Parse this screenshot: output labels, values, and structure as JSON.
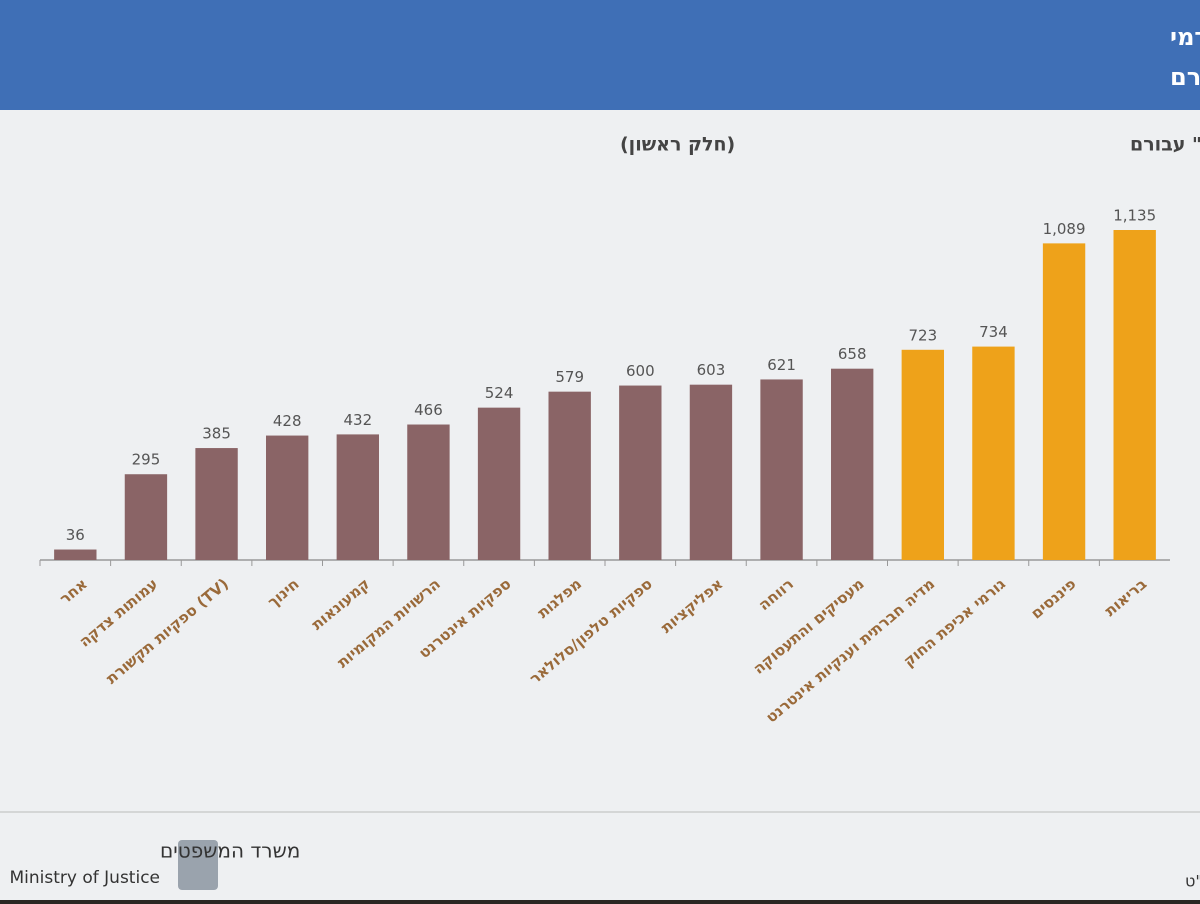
{
  "header": {
    "title_lines": [
      "רובם המכריע של המשיבים סימנו את תחומי הבריאות, הפיננסים, גורמי",
      "אכיפת חוק וענקיות האינטרנט כ\"רגישים\" עבורם"
    ]
  },
  "chart_data": {
    "type": "bar",
    "title": "(חלק ראשון)",
    "subtitle": "מספר האנשים שסימנו תחום זה כ\"רגיש\" עבורם",
    "categories": [
      "אחר",
      "עמותות צדקה",
      "ספקיות תקשורת (TV)",
      "חינוך",
      "קמעונאות",
      "הרשויות המקומיות",
      "ספקיות אינטרנט",
      "מפלגות",
      "ספקיות טלפון/סלולאר",
      "אפליקציות",
      "רווחה",
      "מעסיקים והתעסוקה",
      "מדיה חברתית וענקיות אינטרנט",
      "גורמי אכיפת החוק",
      "פיננסים",
      "בריאות"
    ],
    "values": [
      36,
      295,
      385,
      428,
      432,
      466,
      524,
      579,
      600,
      603,
      621,
      658,
      723,
      734,
      1089,
      1135
    ],
    "value_labels": [
      "36",
      "295",
      "385",
      "428",
      "432",
      "466",
      "524",
      "579",
      "600",
      "603",
      "621",
      "658",
      "723",
      "734",
      "1,089",
      "1,135"
    ],
    "colors": [
      "#8a6466",
      "#8a6466",
      "#8a6466",
      "#8a6466",
      "#8a6466",
      "#8a6466",
      "#8a6466",
      "#8a6466",
      "#8a6466",
      "#8a6466",
      "#8a6466",
      "#8a6466",
      "#eea21a",
      "#eea21a",
      "#eea21a",
      "#eea21a"
    ]
  },
  "footer": {
    "ministry_he": "משרד המשפטים",
    "ministry_en": "Ministry of Justice",
    "unit": "רמו\"ט"
  }
}
